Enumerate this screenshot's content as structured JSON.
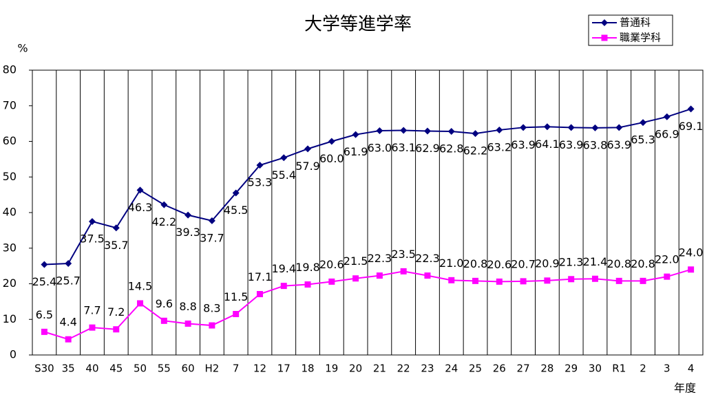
{
  "chart_data": {
    "type": "line",
    "title": "大学等進学率",
    "y_label": "%",
    "x_label": "年度",
    "categories": [
      "S30",
      "35",
      "40",
      "45",
      "50",
      "55",
      "60",
      "H2",
      "7",
      "12",
      "17",
      "18",
      "19",
      "20",
      "21",
      "22",
      "23",
      "24",
      "25",
      "26",
      "27",
      "28",
      "29",
      "30",
      "R1",
      "2",
      "3",
      "4"
    ],
    "series": [
      {
        "name": "普通科",
        "color": "#000080",
        "marker": "diamond",
        "values": [
          25.4,
          25.7,
          37.5,
          35.7,
          46.3,
          42.2,
          39.3,
          37.7,
          45.5,
          53.3,
          55.4,
          57.9,
          60.0,
          61.9,
          63.0,
          63.1,
          62.9,
          62.8,
          62.2,
          63.2,
          63.9,
          64.1,
          63.9,
          63.8,
          63.9,
          65.3,
          66.9,
          69.1
        ],
        "value_labels": [
          "25.4",
          "25.7",
          "37.5",
          "35.7",
          "46.3",
          "42.2",
          "39.3",
          "37.7",
          "45.5",
          "53.3",
          "55.4",
          "57.9",
          "60.0",
          "61.9",
          "63.0",
          "63.1",
          "62.9",
          "62.8",
          "62.2",
          "63.2",
          "63.9",
          "64.1",
          "63.9",
          "63.8",
          "63.9",
          "65.3",
          "66.9",
          "69.1"
        ]
      },
      {
        "name": "職業学科",
        "color": "#ff00ff",
        "marker": "square",
        "values": [
          6.5,
          4.4,
          7.7,
          7.2,
          14.5,
          9.6,
          8.8,
          8.3,
          11.5,
          17.1,
          19.4,
          19.8,
          20.6,
          21.5,
          22.3,
          23.5,
          22.3,
          21.0,
          20.8,
          20.6,
          20.7,
          20.9,
          21.3,
          21.4,
          20.8,
          20.8,
          22.0,
          24.0
        ],
        "value_labels": [
          "6.5",
          "4.4",
          "7.7",
          "7.2",
          "14.5",
          "9.6",
          "8.8",
          "8.3",
          "11.5",
          "17.1",
          "19.4",
          "19.8",
          "20.6",
          "21.5",
          "22.3",
          "23.5",
          "22.3",
          "21.0",
          "20.8",
          "20.6",
          "20.7",
          "20.9",
          "21.3",
          "21.4",
          "20.8",
          "20.8",
          "22.0",
          "24.0"
        ]
      }
    ],
    "ylim": [
      0,
      80
    ],
    "yticks": [
      0,
      10,
      20,
      30,
      40,
      50,
      60,
      70,
      80
    ],
    "grid": true,
    "legend": "top-right"
  }
}
